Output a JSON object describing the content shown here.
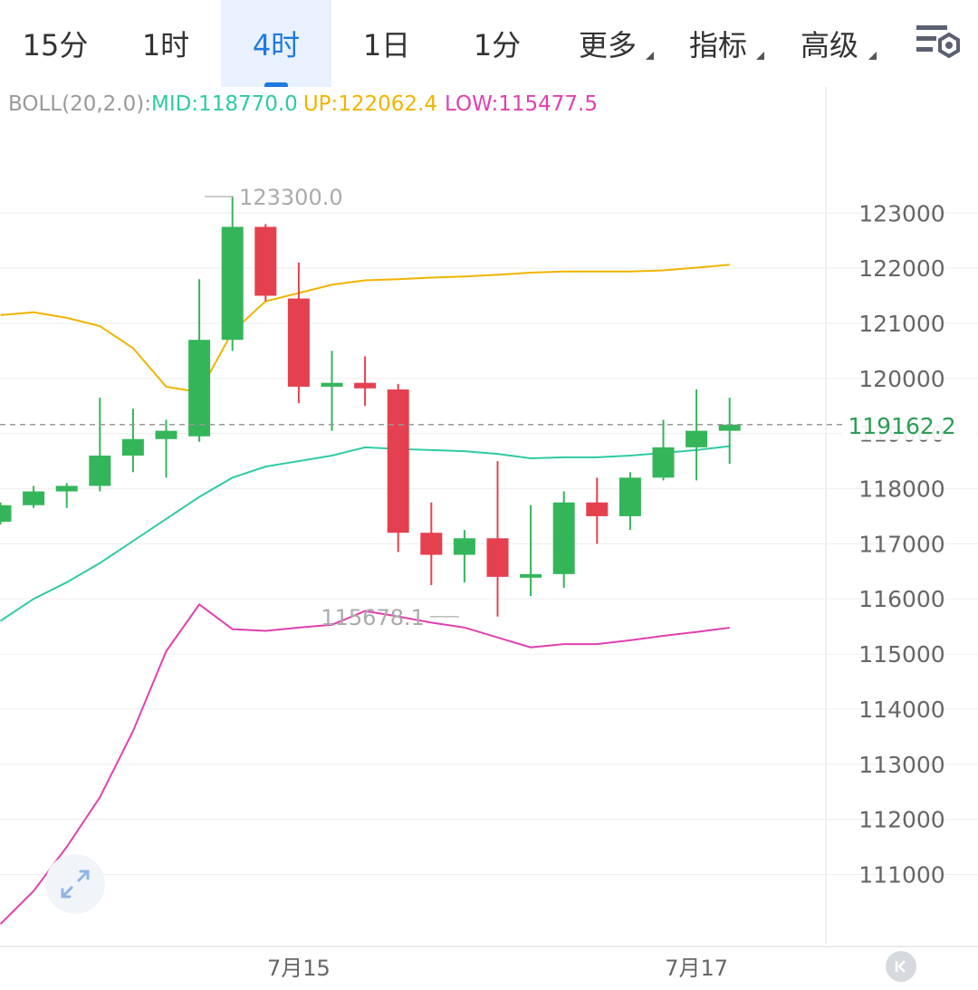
{
  "tabs": [
    {
      "label": "15分",
      "active": false,
      "dropdown": false
    },
    {
      "label": "1时",
      "active": false,
      "dropdown": false
    },
    {
      "label": "4时",
      "active": true,
      "dropdown": false
    },
    {
      "label": "1日",
      "active": false,
      "dropdown": false
    },
    {
      "label": "1分",
      "active": false,
      "dropdown": false
    },
    {
      "label": "更多",
      "active": false,
      "dropdown": true
    },
    {
      "label": "指标",
      "active": false,
      "dropdown": true
    },
    {
      "label": "高级",
      "active": false,
      "dropdown": true
    }
  ],
  "settings_icon": "chart-settings-icon",
  "legend": {
    "name": "BOLL(20,2.0):",
    "mid": "MID:118770.0",
    "up": "UP:122062.4",
    "low": "LOW:115477.5"
  },
  "colors": {
    "up_candle": "#35b55a",
    "down_candle": "#e5404f",
    "mid": "#2fcaa4",
    "upper": "#f0b400",
    "lower": "#e040b0",
    "accent": "#1f7ae0",
    "last_price": "#2a9d52"
  },
  "chart_data": {
    "type": "candlestick",
    "indicator": "BOLL(20,2.0)",
    "y_ticks": [
      123000,
      122000,
      121000,
      120000,
      119000,
      118000,
      117000,
      116000,
      115000,
      114000,
      113000,
      112000,
      111000
    ],
    "x_labels": [
      {
        "label": "7月15",
        "index": 9
      },
      {
        "label": "7月17",
        "index": 21
      }
    ],
    "last_price": 119162.2,
    "last_price_label": "119162.2",
    "high_marker": {
      "label": "123300.0",
      "value": 123300,
      "index": 6
    },
    "low_marker": {
      "label": "115678.1",
      "value": 115678.1,
      "index": 14
    },
    "candles": [
      {
        "o": 117400,
        "h": 117750,
        "c": 117700,
        "l": 117350
      },
      {
        "o": 117700,
        "h": 118050,
        "c": 117950,
        "l": 117650
      },
      {
        "o": 117950,
        "h": 118100,
        "c": 118050,
        "l": 117650
      },
      {
        "o": 118050,
        "h": 119650,
        "c": 118600,
        "l": 117950
      },
      {
        "o": 118600,
        "h": 119450,
        "c": 118900,
        "l": 118300
      },
      {
        "o": 118900,
        "h": 119250,
        "c": 119050,
        "l": 118200
      },
      {
        "o": 118950,
        "h": 121800,
        "c": 120700,
        "l": 118850
      },
      {
        "o": 120700,
        "h": 123300,
        "c": 122750,
        "l": 120500
      },
      {
        "o": 122750,
        "h": 122800,
        "c": 121500,
        "l": 121400
      },
      {
        "o": 121450,
        "h": 122100,
        "c": 119850,
        "l": 119550
      },
      {
        "o": 119850,
        "h": 120500,
        "c": 119920,
        "l": 119050
      },
      {
        "o": 119920,
        "h": 120400,
        "c": 119820,
        "l": 119500
      },
      {
        "o": 119800,
        "h": 119900,
        "c": 117200,
        "l": 116850
      },
      {
        "o": 117200,
        "h": 117750,
        "c": 116800,
        "l": 116250
      },
      {
        "o": 116800,
        "h": 117250,
        "c": 117100,
        "l": 116300
      },
      {
        "o": 117100,
        "h": 118500,
        "c": 116400,
        "l": 115678.1
      },
      {
        "o": 116400,
        "h": 117700,
        "c": 116450,
        "l": 116050
      },
      {
        "o": 116450,
        "h": 117950,
        "c": 117750,
        "l": 116200
      },
      {
        "o": 117750,
        "h": 118200,
        "c": 117500,
        "l": 117000
      },
      {
        "o": 117500,
        "h": 118300,
        "c": 118200,
        "l": 117250
      },
      {
        "o": 118200,
        "h": 119250,
        "c": 118750,
        "l": 118150
      },
      {
        "o": 118750,
        "h": 119800,
        "c": 119050,
        "l": 118150
      },
      {
        "o": 119050,
        "h": 119650,
        "c": 119162.2,
        "l": 118450
      }
    ],
    "boll_up": [
      121150,
      121200,
      121100,
      120950,
      120550,
      119850,
      119750,
      120850,
      121400,
      121550,
      121700,
      121780,
      121800,
      121830,
      121850,
      121880,
      121920,
      121940,
      121940,
      121940,
      121960,
      122010,
      122062.4
    ],
    "boll_mid": [
      115600,
      116000,
      116300,
      116650,
      117050,
      117450,
      117850,
      118200,
      118400,
      118500,
      118600,
      118750,
      118720,
      118700,
      118680,
      118630,
      118550,
      118570,
      118570,
      118600,
      118650,
      118700,
      118770
    ],
    "boll_low": [
      110100,
      110700,
      111500,
      112400,
      113600,
      115050,
      115900,
      115450,
      115420,
      115480,
      115530,
      115780,
      115680,
      115570,
      115480,
      115300,
      115120,
      115180,
      115180,
      115250,
      115330,
      115400,
      115477.5
    ]
  }
}
